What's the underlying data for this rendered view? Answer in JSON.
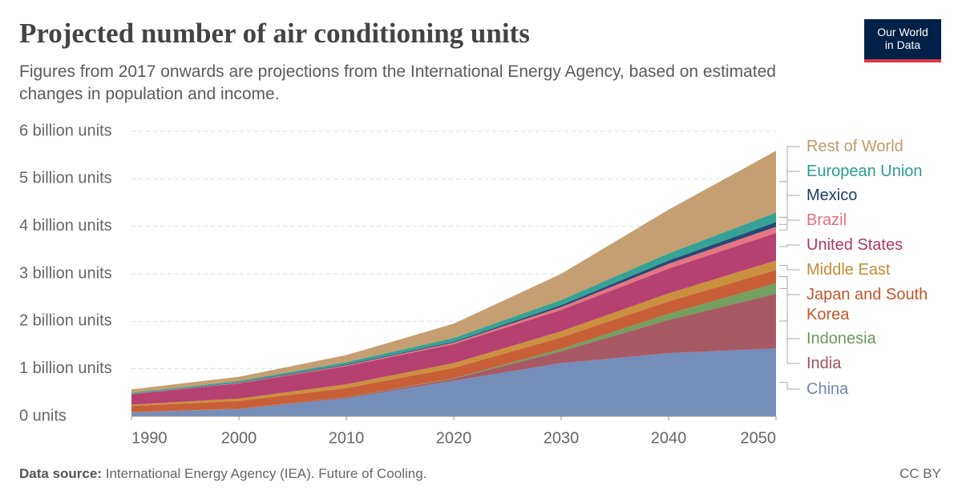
{
  "chart_data": {
    "type": "stacked-area",
    "title": "Projected number of air conditioning units",
    "subtitle": "Figures from 2017 onwards are projections from the International Energy Agency, based on estimated changes in population and income.",
    "logo": "Our World in Data",
    "source_label": "Data source:",
    "source": "International Energy Agency (IEA). Future of Cooling.",
    "license": "CC BY",
    "x": [
      1990,
      2000,
      2010,
      2020,
      2030,
      2040,
      2050
    ],
    "xlim": [
      1990,
      2050
    ],
    "xticks": [
      1990,
      2000,
      2010,
      2020,
      2030,
      2040,
      2050
    ],
    "ylim": [
      0,
      6000000000
    ],
    "yticks": [
      {
        "value": 0,
        "label": "0 units"
      },
      {
        "value": 1000000000,
        "label": "1 billion units"
      },
      {
        "value": 2000000000,
        "label": "2 billion units"
      },
      {
        "value": 3000000000,
        "label": "3 billion units"
      },
      {
        "value": 4000000000,
        "label": "4 billion units"
      },
      {
        "value": 5000000000,
        "label": "5 billion units"
      },
      {
        "value": 6000000000,
        "label": "6 billion units"
      }
    ],
    "grid": true,
    "series": [
      {
        "name": "China",
        "color": "#6d87b5",
        "values": [
          80000000,
          150000000,
          380000000,
          750000000,
          1120000000,
          1330000000,
          1430000000
        ]
      },
      {
        "name": "India",
        "color": "#a2515d",
        "values": [
          5000000,
          10000000,
          20000000,
          40000000,
          250000000,
          700000000,
          1150000000
        ]
      },
      {
        "name": "Indonesia",
        "color": "#6b9a56",
        "values": [
          2000000,
          3000000,
          5000000,
          10000000,
          50000000,
          130000000,
          220000000
        ]
      },
      {
        "name": "Japan and South Korea",
        "color": "#c4562c",
        "values": [
          130000000,
          160000000,
          190000000,
          220000000,
          240000000,
          260000000,
          280000000
        ]
      },
      {
        "name": "Middle East",
        "color": "#c88a35",
        "values": [
          30000000,
          50000000,
          80000000,
          100000000,
          130000000,
          170000000,
          200000000
        ]
      },
      {
        "name": "United States",
        "color": "#b13768",
        "values": [
          220000000,
          320000000,
          380000000,
          400000000,
          450000000,
          520000000,
          580000000
        ]
      },
      {
        "name": "Brazil",
        "color": "#e56e7a",
        "values": [
          5000000,
          10000000,
          20000000,
          30000000,
          60000000,
          100000000,
          130000000
        ]
      },
      {
        "name": "Mexico",
        "color": "#1d3d6b",
        "values": [
          5000000,
          10000000,
          15000000,
          20000000,
          40000000,
          70000000,
          100000000
        ]
      },
      {
        "name": "European Union",
        "color": "#2a9d8f",
        "values": [
          20000000,
          30000000,
          50000000,
          80000000,
          110000000,
          150000000,
          200000000
        ]
      },
      {
        "name": "Rest of World",
        "color": "#c29a6a",
        "values": [
          70000000,
          90000000,
          150000000,
          300000000,
          550000000,
          920000000,
          1300000000
        ]
      }
    ]
  }
}
